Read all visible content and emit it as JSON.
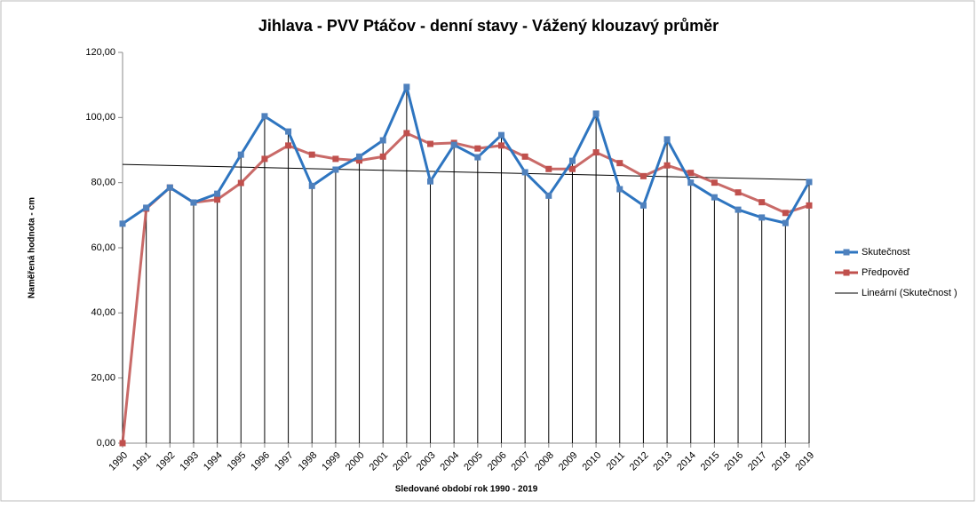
{
  "chart_data": {
    "type": "line",
    "title": "Jihlava - PVV Ptáčov - denní stavy - Vážený klouzavý průměr",
    "y_label": "Naměřená hodnota - cm",
    "x_label": "Sledované období rok 1990 - 2019",
    "categories": [
      "1990",
      "1991",
      "1992",
      "1993",
      "1994",
      "1995",
      "1996",
      "1997",
      "1998",
      "1999",
      "2000",
      "2001",
      "2002",
      "2003",
      "2004",
      "2005",
      "2006",
      "2007",
      "2008",
      "2009",
      "2010",
      "2011",
      "2012",
      "2013",
      "2014",
      "2015",
      "2016",
      "2017",
      "2018",
      "2019"
    ],
    "series": [
      {
        "name": "Skutečnost",
        "color": "#2e75c0",
        "marker": "#4f81bd",
        "values": [
          67.4,
          72.3,
          78.5,
          73.9,
          76.6,
          88.6,
          100.4,
          95.7,
          79,
          84,
          88,
          93,
          109.4,
          80.4,
          91.6,
          87.8,
          94.6,
          83.2,
          76,
          86.7,
          101.2,
          78,
          73,
          93.3,
          80,
          75.5,
          71.7,
          69.3,
          67.6,
          80.2
        ]
      },
      {
        "name": "Předpověď",
        "color": "#c0504d",
        "marker": "#c0504d",
        "values": [
          0,
          72,
          78.5,
          73.9,
          74.8,
          79.9,
          87.3,
          91.4,
          88.6,
          87.3,
          86.8,
          88,
          95.2,
          91.9,
          92.2,
          90.5,
          91.4,
          88,
          84.2,
          84.2,
          89.3,
          86,
          82,
          85.3,
          83,
          80,
          77,
          74,
          70.7,
          73
        ]
      }
    ],
    "trendline": {
      "name": "Lineární (Skutečnost )",
      "color": "#000000",
      "of_series": 0
    },
    "drop_lines": true,
    "ylim": [
      0,
      120
    ],
    "yticks": [
      {
        "value": 0,
        "label": "0,00"
      },
      {
        "value": 20,
        "label": "20,00"
      },
      {
        "value": 40,
        "label": "40,00"
      },
      {
        "value": 60,
        "label": "60,00"
      },
      {
        "value": 80,
        "label": "80,00"
      },
      {
        "value": 100,
        "label": "100,00"
      },
      {
        "value": 120,
        "label": "120,00"
      }
    ],
    "legend": "right"
  }
}
